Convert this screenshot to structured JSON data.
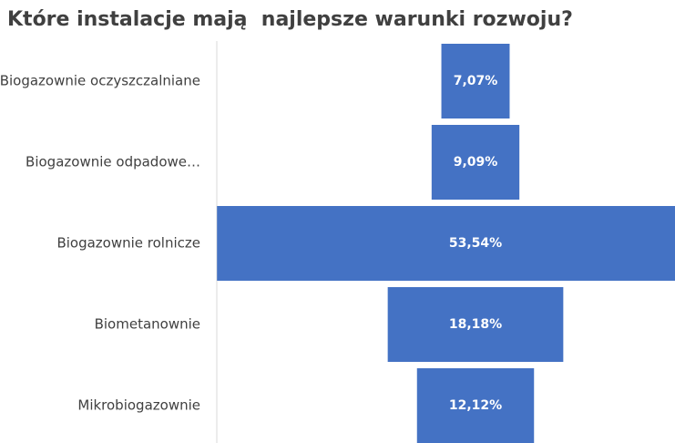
{
  "chart_data": {
    "type": "funnel",
    "title": "Które instalacje mają  najlepsze warunki rozwoju?",
    "categories": [
      "Biogazownie oczyszczalniane",
      "Biogazownie odpadowe…",
      "Biogazownie rolnicze",
      "Biometanownie",
      "Mikrobiogazownie"
    ],
    "values": [
      7.07,
      9.09,
      53.54,
      18.18,
      12.12
    ],
    "value_labels": [
      "7,07%",
      "9,09%",
      "53,54%",
      "18,18%",
      "12,12%"
    ],
    "color": "#4472c4"
  }
}
